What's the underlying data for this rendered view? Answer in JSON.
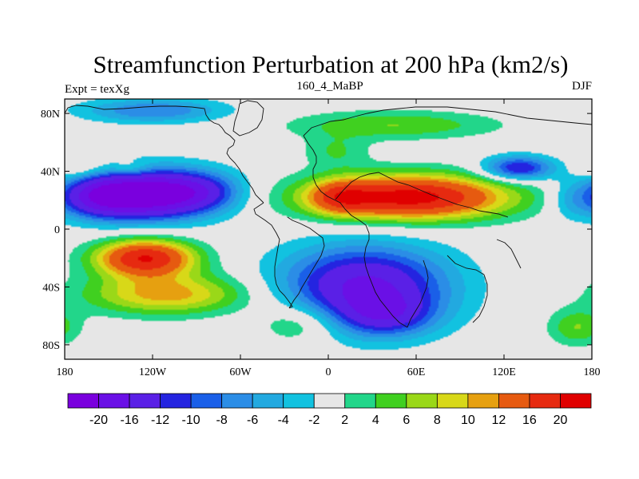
{
  "chart_data": {
    "type": "heatmap",
    "title": "Streamfunction Perturbation at 200 hPa (km2/s)",
    "subtitle_left": "Expt = texXg",
    "subtitle_center": "160_4_MaBP",
    "subtitle_right": "DJF",
    "xlim": [
      -180,
      180
    ],
    "ylim": [
      -90,
      90
    ],
    "x_ticks": [
      {
        "value": -180,
        "label": "180"
      },
      {
        "value": -120,
        "label": "120W"
      },
      {
        "value": -60,
        "label": "60W"
      },
      {
        "value": 0,
        "label": "0"
      },
      {
        "value": 60,
        "label": "60E"
      },
      {
        "value": 120,
        "label": "120E"
      },
      {
        "value": 180,
        "label": "180"
      }
    ],
    "y_ticks": [
      {
        "value": 80,
        "label": "80N"
      },
      {
        "value": 40,
        "label": "40N"
      },
      {
        "value": 0,
        "label": "0"
      },
      {
        "value": -40,
        "label": "40S"
      },
      {
        "value": -80,
        "label": "80S"
      }
    ],
    "colorbar": {
      "levels": [
        -20,
        -16,
        -12,
        -10,
        -8,
        -6,
        -4,
        -2,
        2,
        4,
        6,
        8,
        10,
        12,
        16,
        20
      ],
      "colors": [
        "#7a00de",
        "#6a10e6",
        "#5a20e6",
        "#2424e0",
        "#1a5fe8",
        "#2b8de6",
        "#22a9e0",
        "#12c2e0",
        "#e6e6e6",
        "#22d68a",
        "#40d020",
        "#9ad818",
        "#d8d818",
        "#e6a010",
        "#e65a10",
        "#e62a10",
        "#e00000"
      ],
      "labels": [
        "-20",
        "-16",
        "-12",
        "-10",
        "-8",
        "-6",
        "-4",
        "-2",
        "2",
        "4",
        "6",
        "8",
        "10",
        "12",
        "16",
        "20"
      ]
    },
    "features": [
      {
        "lon": -125,
        "lat": 24,
        "amp": -24,
        "slon": 30,
        "slat": 12
      },
      {
        "lon": -160,
        "lat": 22,
        "amp": -10,
        "slon": 18,
        "slat": 10
      },
      {
        "lon": -85,
        "lat": 26,
        "amp": -8,
        "slon": 20,
        "slat": 10
      },
      {
        "lon": 55,
        "lat": 22,
        "amp": 22,
        "slon": 48,
        "slat": 11
      },
      {
        "lon": 8,
        "lat": 22,
        "amp": 8,
        "slon": 14,
        "slat": 8
      },
      {
        "lon": -125,
        "lat": -20,
        "amp": 20,
        "slon": 24,
        "slat": 9
      },
      {
        "lon": -110,
        "lat": -45,
        "amp": 11,
        "slon": 40,
        "slat": 10
      },
      {
        "lon": 25,
        "lat": -40,
        "amp": -17,
        "slon": 40,
        "slat": 20
      },
      {
        "lon": 40,
        "lat": -60,
        "amp": -8,
        "slon": 22,
        "slat": 10
      },
      {
        "lon": -120,
        "lat": 82,
        "amp": -8,
        "slon": 35,
        "slat": 6
      },
      {
        "lon": 130,
        "lat": 42,
        "amp": -13,
        "slon": 17,
        "slat": 6
      },
      {
        "lon": 45,
        "lat": 72,
        "amp": 6,
        "slon": 50,
        "slat": 7
      },
      {
        "lon": 5,
        "lat": 54,
        "amp": 4,
        "slon": 16,
        "slat": 8
      },
      {
        "lon": 170,
        "lat": -68,
        "amp": 6,
        "slon": 14,
        "slat": 9
      },
      {
        "lon": -20,
        "lat": -65,
        "amp": 6,
        "slon": 20,
        "slat": 10
      },
      {
        "lon": 165,
        "lat": 20,
        "amp": -4,
        "slon": 10,
        "slat": 10
      },
      {
        "lon": -170,
        "lat": 42,
        "amp": 4,
        "slon": 14,
        "slat": 5
      },
      {
        "lon": -135,
        "lat": 42,
        "amp": 4,
        "slon": 10,
        "slat": 4
      }
    ]
  }
}
